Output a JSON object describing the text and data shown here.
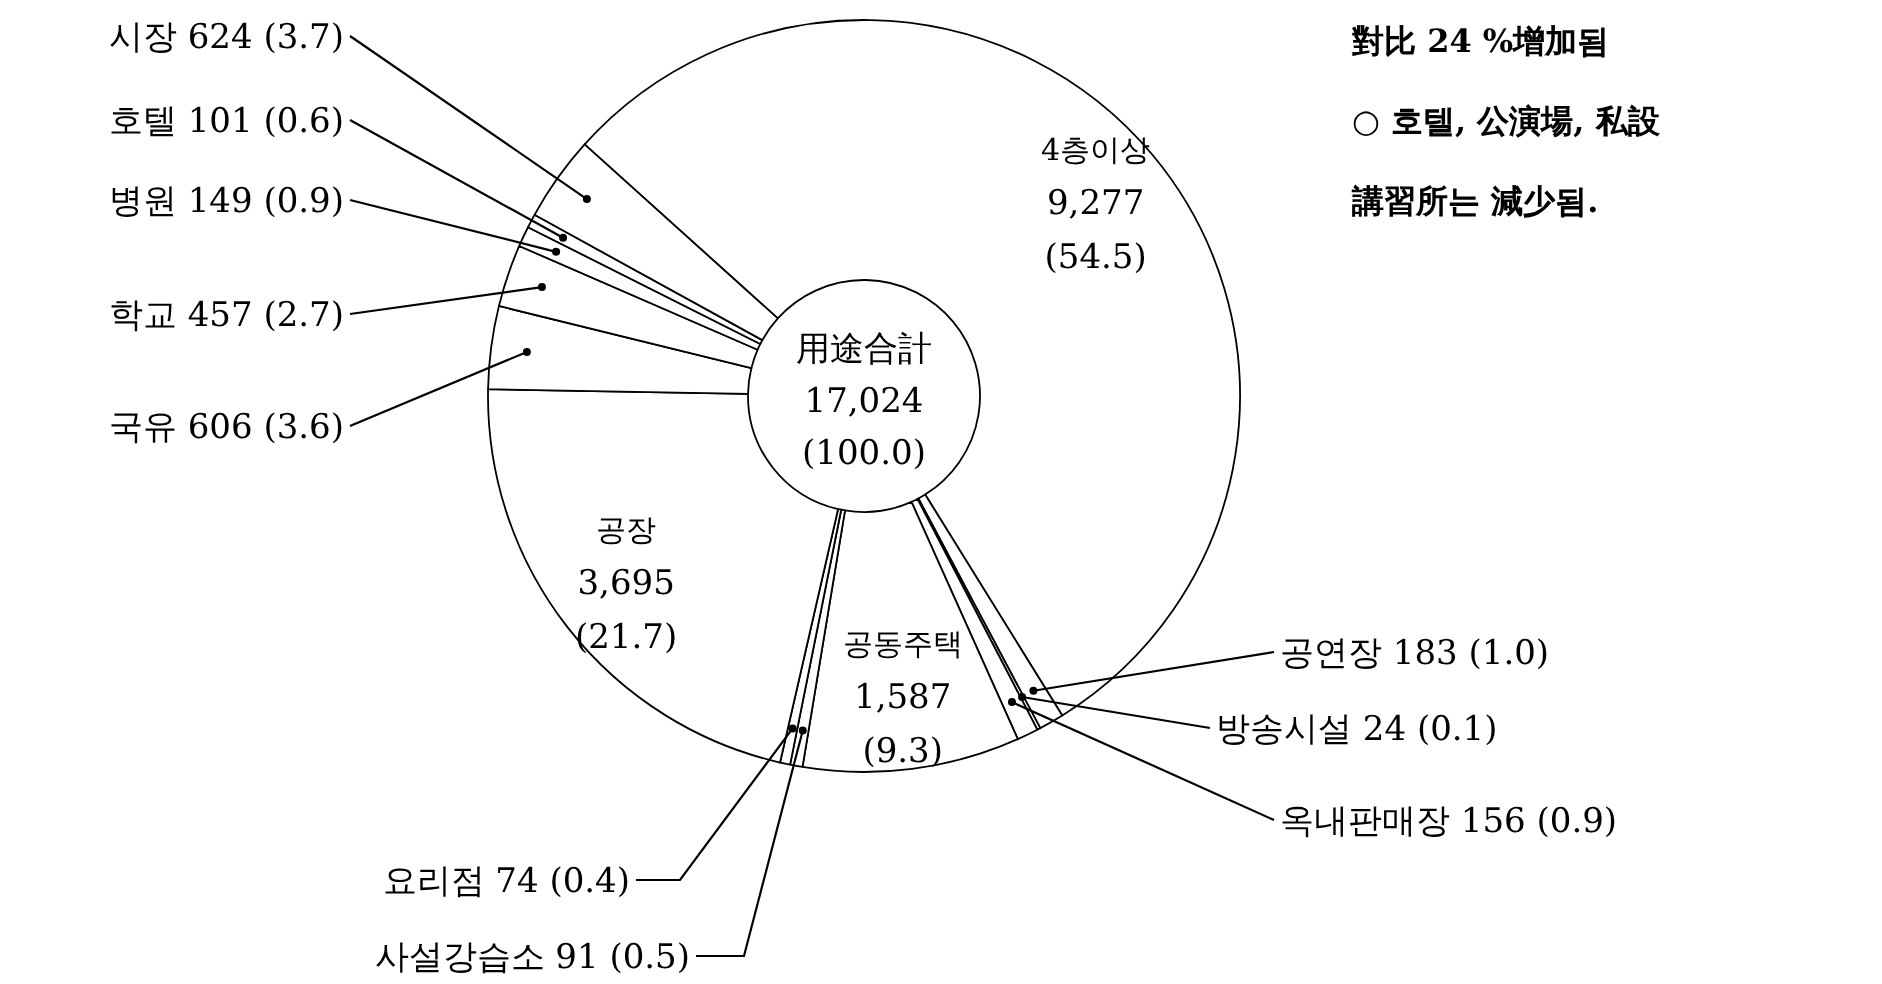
{
  "chart_data": {
    "type": "donut",
    "title": "用途合計",
    "categories": [
      "4층이상",
      "공연장",
      "방송시설",
      "옥내판매장",
      "공동주택",
      "사설강습소",
      "요리점",
      "공장",
      "국유",
      "학교",
      "병원",
      "호텔",
      "시장"
    ],
    "values": [
      9277,
      183,
      24,
      156,
      1587,
      91,
      74,
      3695,
      606,
      457,
      149,
      101,
      624
    ],
    "value_labels": [
      "9,277 (54.5)",
      "183 (1.0)",
      "24 (0.1)",
      "156 (0.9)",
      "1,587 (9.3)",
      "91 (0.5)",
      "74 (0.4)",
      "3,695 (21.7)",
      "606 (3.6)",
      "457 (2.7)",
      "149 (0.9)",
      "101 (0.6)",
      "624 (3.7)"
    ],
    "colors": [
      "#ffffff",
      "#ffffff",
      "#ffffff",
      "#ffffff",
      "#ffffff",
      "#ffffff",
      "#ffffff",
      "#ffffff",
      "#ffffff",
      "#ffffff",
      "#ffffff",
      "#ffffff",
      "#ffffff"
    ],
    "annotations": [
      "17,024",
      "(100.0)",
      "對比 24 %增加됨",
      "○ 호텔, 公演場, 私設",
      "講習所는 減少됨."
    ]
  }
}
